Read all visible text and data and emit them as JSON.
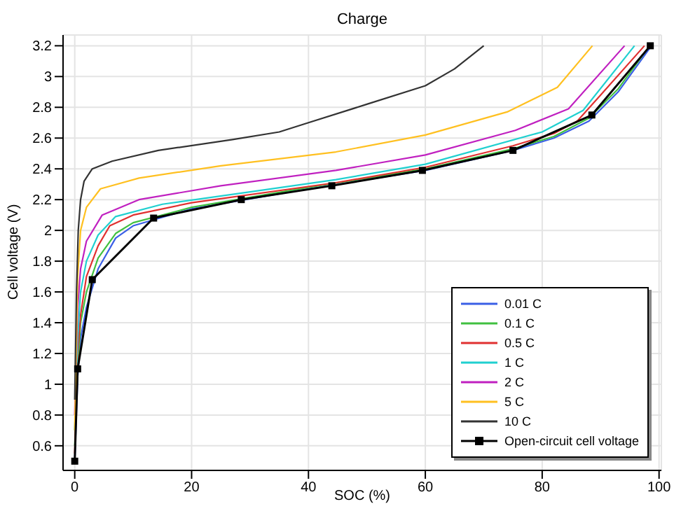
{
  "chart_data": {
    "type": "line",
    "title": "Charge",
    "xlabel": "SOC (%)",
    "ylabel": "Cell voltage (V)",
    "xlim": [
      -2,
      100.4
    ],
    "xticks": [
      0,
      20,
      40,
      60,
      80,
      100
    ],
    "ylim": [
      0.44,
      3.27
    ],
    "yticks": [
      0.6,
      0.8,
      1,
      1.2,
      1.4,
      1.6,
      1.8,
      2,
      2.2,
      2.4,
      2.6,
      2.8,
      3,
      3.2
    ],
    "grid": true,
    "legend": "bottom right",
    "line_style": "solid",
    "series": [
      {
        "name": "0.01 C",
        "color": "#3a5fe6",
        "marker": "none",
        "x": [
          0,
          0.5,
          1,
          2,
          4,
          7,
          10,
          20,
          40,
          60,
          75,
          82,
          88,
          93,
          98.7
        ],
        "values": [
          0.5,
          1.05,
          1.3,
          1.5,
          1.75,
          1.95,
          2.03,
          2.14,
          2.27,
          2.39,
          2.52,
          2.6,
          2.71,
          2.9,
          3.2
        ]
      },
      {
        "name": "0.1 C",
        "color": "#40c040",
        "marker": "none",
        "x": [
          0,
          0.5,
          1,
          2,
          4,
          7,
          10,
          20,
          40,
          60,
          75,
          82,
          88,
          93,
          98.4
        ],
        "values": [
          0.6,
          1.1,
          1.4,
          1.6,
          1.82,
          1.98,
          2.05,
          2.15,
          2.28,
          2.4,
          2.53,
          2.61,
          2.73,
          2.92,
          3.2
        ]
      },
      {
        "name": "0.5 C",
        "color": "#e03030",
        "marker": "none",
        "x": [
          0,
          0.5,
          1,
          2,
          4,
          6,
          10,
          20,
          44.7,
          60,
          75,
          82,
          86,
          90,
          97.5
        ],
        "values": [
          0.55,
          1.2,
          1.45,
          1.7,
          1.9,
          2.03,
          2.1,
          2.18,
          2.31,
          2.41,
          2.55,
          2.63,
          2.71,
          2.88,
          3.2
        ]
      },
      {
        "name": "1 C",
        "color": "#20d0d0",
        "marker": "none",
        "x": [
          0,
          0.5,
          1,
          2,
          4,
          7,
          15,
          30,
          44.7,
          60,
          80,
          87,
          95.8
        ],
        "values": [
          0.7,
          1.3,
          1.6,
          1.8,
          1.97,
          2.09,
          2.17,
          2.25,
          2.33,
          2.43,
          2.64,
          2.78,
          3.2
        ]
      },
      {
        "name": "2 C",
        "color": "#c020c0",
        "marker": "none",
        "x": [
          0,
          0.5,
          1,
          2,
          4.7,
          11,
          25,
          44.7,
          60,
          75.4,
          84.5,
          94.1
        ],
        "values": [
          0.8,
          1.5,
          1.75,
          1.93,
          2.1,
          2.2,
          2.29,
          2.39,
          2.49,
          2.65,
          2.79,
          3.2
        ]
      },
      {
        "name": "5 C",
        "color": "#ffc020",
        "marker": "none",
        "x": [
          0,
          0.5,
          1,
          2,
          4.4,
          11,
          25,
          44.7,
          60,
          74,
          82.6,
          88.6
        ],
        "values": [
          0.7,
          1.7,
          2,
          2.15,
          2.27,
          2.34,
          2.42,
          2.51,
          2.62,
          2.77,
          2.93,
          3.2
        ]
      },
      {
        "name": "10 C",
        "color": "#333333",
        "marker": "none",
        "x": [
          0,
          0.3,
          0.6,
          1,
          1.6,
          3,
          6.4,
          14.3,
          27,
          35,
          40,
          50,
          60,
          65,
          70
        ],
        "values": [
          0.9,
          1.6,
          2,
          2.2,
          2.32,
          2.4,
          2.45,
          2.52,
          2.59,
          2.64,
          2.7,
          2.82,
          2.94,
          3.05,
          3.2
        ]
      },
      {
        "name": "Open-circuit cell voltage",
        "color": "#000000",
        "marker": "square",
        "x": [
          0,
          0.5,
          3,
          13.5,
          28.5,
          44,
          59.5,
          75,
          88.5,
          98.5
        ],
        "values": [
          0.5,
          1.1,
          1.68,
          2.08,
          2.2,
          2.29,
          2.39,
          2.52,
          2.75,
          3.2
        ]
      }
    ]
  }
}
